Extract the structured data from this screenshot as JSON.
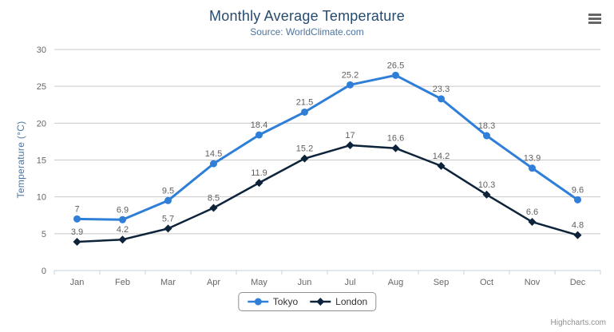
{
  "chart": {
    "title": "Monthly Average Temperature",
    "subtitle": "Source: WorldClimate.com"
  },
  "chart_data": {
    "type": "line",
    "title": "Monthly Average Temperature",
    "subtitle": "Source: WorldClimate.com",
    "categories": [
      "Jan",
      "Feb",
      "Mar",
      "Apr",
      "May",
      "Jun",
      "Jul",
      "Aug",
      "Sep",
      "Oct",
      "Nov",
      "Dec"
    ],
    "series": [
      {
        "name": "Tokyo",
        "color": "#2f7ed8",
        "marker": "circle",
        "values": [
          7,
          6.9,
          9.5,
          14.5,
          18.4,
          21.5,
          25.2,
          26.5,
          23.3,
          18.3,
          13.9,
          9.6
        ]
      },
      {
        "name": "London",
        "color": "#0d233a",
        "marker": "diamond",
        "values": [
          3.9,
          4.2,
          5.7,
          8.5,
          11.9,
          15.2,
          17,
          16.6,
          14.2,
          10.3,
          6.6,
          4.8
        ]
      }
    ],
    "xlabel": "",
    "ylabel": "Temperature (°C)",
    "ylim": [
      0,
      30
    ],
    "tick_interval": 5,
    "grid": true,
    "legend_position": "bottom",
    "data_labels": true
  },
  "colors": {
    "title": "#274b6d",
    "subtitle": "#4d759e",
    "axis_label": "#666666",
    "axis_line": "#C0D0E0",
    "gridline": "#C9C9C9",
    "data_label": "#606060",
    "legend_text": "#333333",
    "credits": "#909090",
    "context_menu_icon": "#666666"
  },
  "icons": {
    "context_menu": "hamburger-icon"
  },
  "credits": {
    "text": "Highcharts.com"
  }
}
